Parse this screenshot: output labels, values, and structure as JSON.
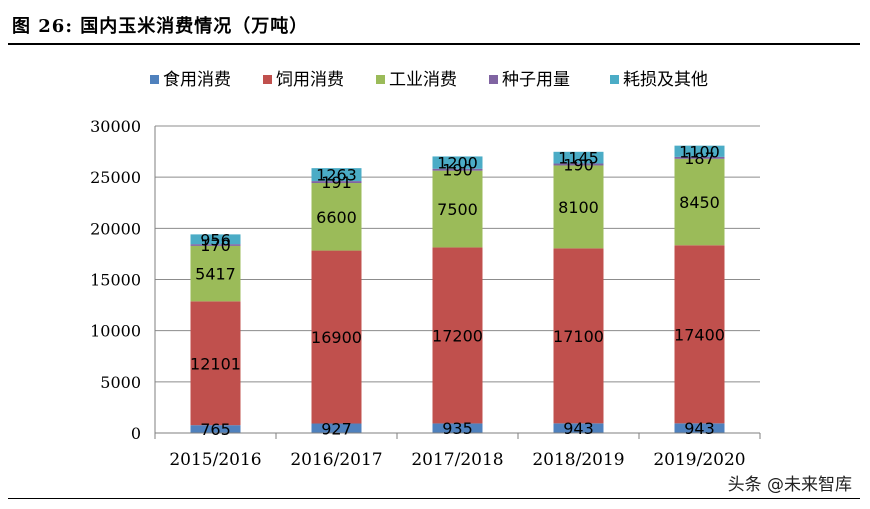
{
  "figure_title": "图 26: 国内玉米消费情况（万吨）",
  "watermark": "头条 @未来智库",
  "chart_data": {
    "type": "bar",
    "stacked": true,
    "title": "图 26: 国内玉米消费情况（万吨）",
    "categories": [
      "2015/2016",
      "2016/2017",
      "2017/2018",
      "2018/2019",
      "2019/2020"
    ],
    "series": [
      {
        "name": "食用消费",
        "color": "#4F81BD",
        "values": [
          765,
          927,
          935,
          943,
          943
        ]
      },
      {
        "name": "饲用消费",
        "color": "#C0504D",
        "values": [
          12101,
          16900,
          17200,
          17100,
          17400
        ]
      },
      {
        "name": "工业消费",
        "color": "#9BBB59",
        "values": [
          5417,
          6600,
          7500,
          8100,
          8450
        ]
      },
      {
        "name": "种子用量",
        "color": "#8064A2",
        "values": [
          170,
          191,
          190,
          190,
          187
        ]
      },
      {
        "name": "耗损及其他",
        "color": "#4BACC6",
        "values": [
          956,
          1263,
          1200,
          1145,
          1100
        ]
      }
    ],
    "ylim": [
      0,
      30000
    ],
    "yticks": [
      0,
      5000,
      10000,
      15000,
      20000,
      25000,
      30000
    ],
    "grid": true,
    "legend": "top"
  }
}
